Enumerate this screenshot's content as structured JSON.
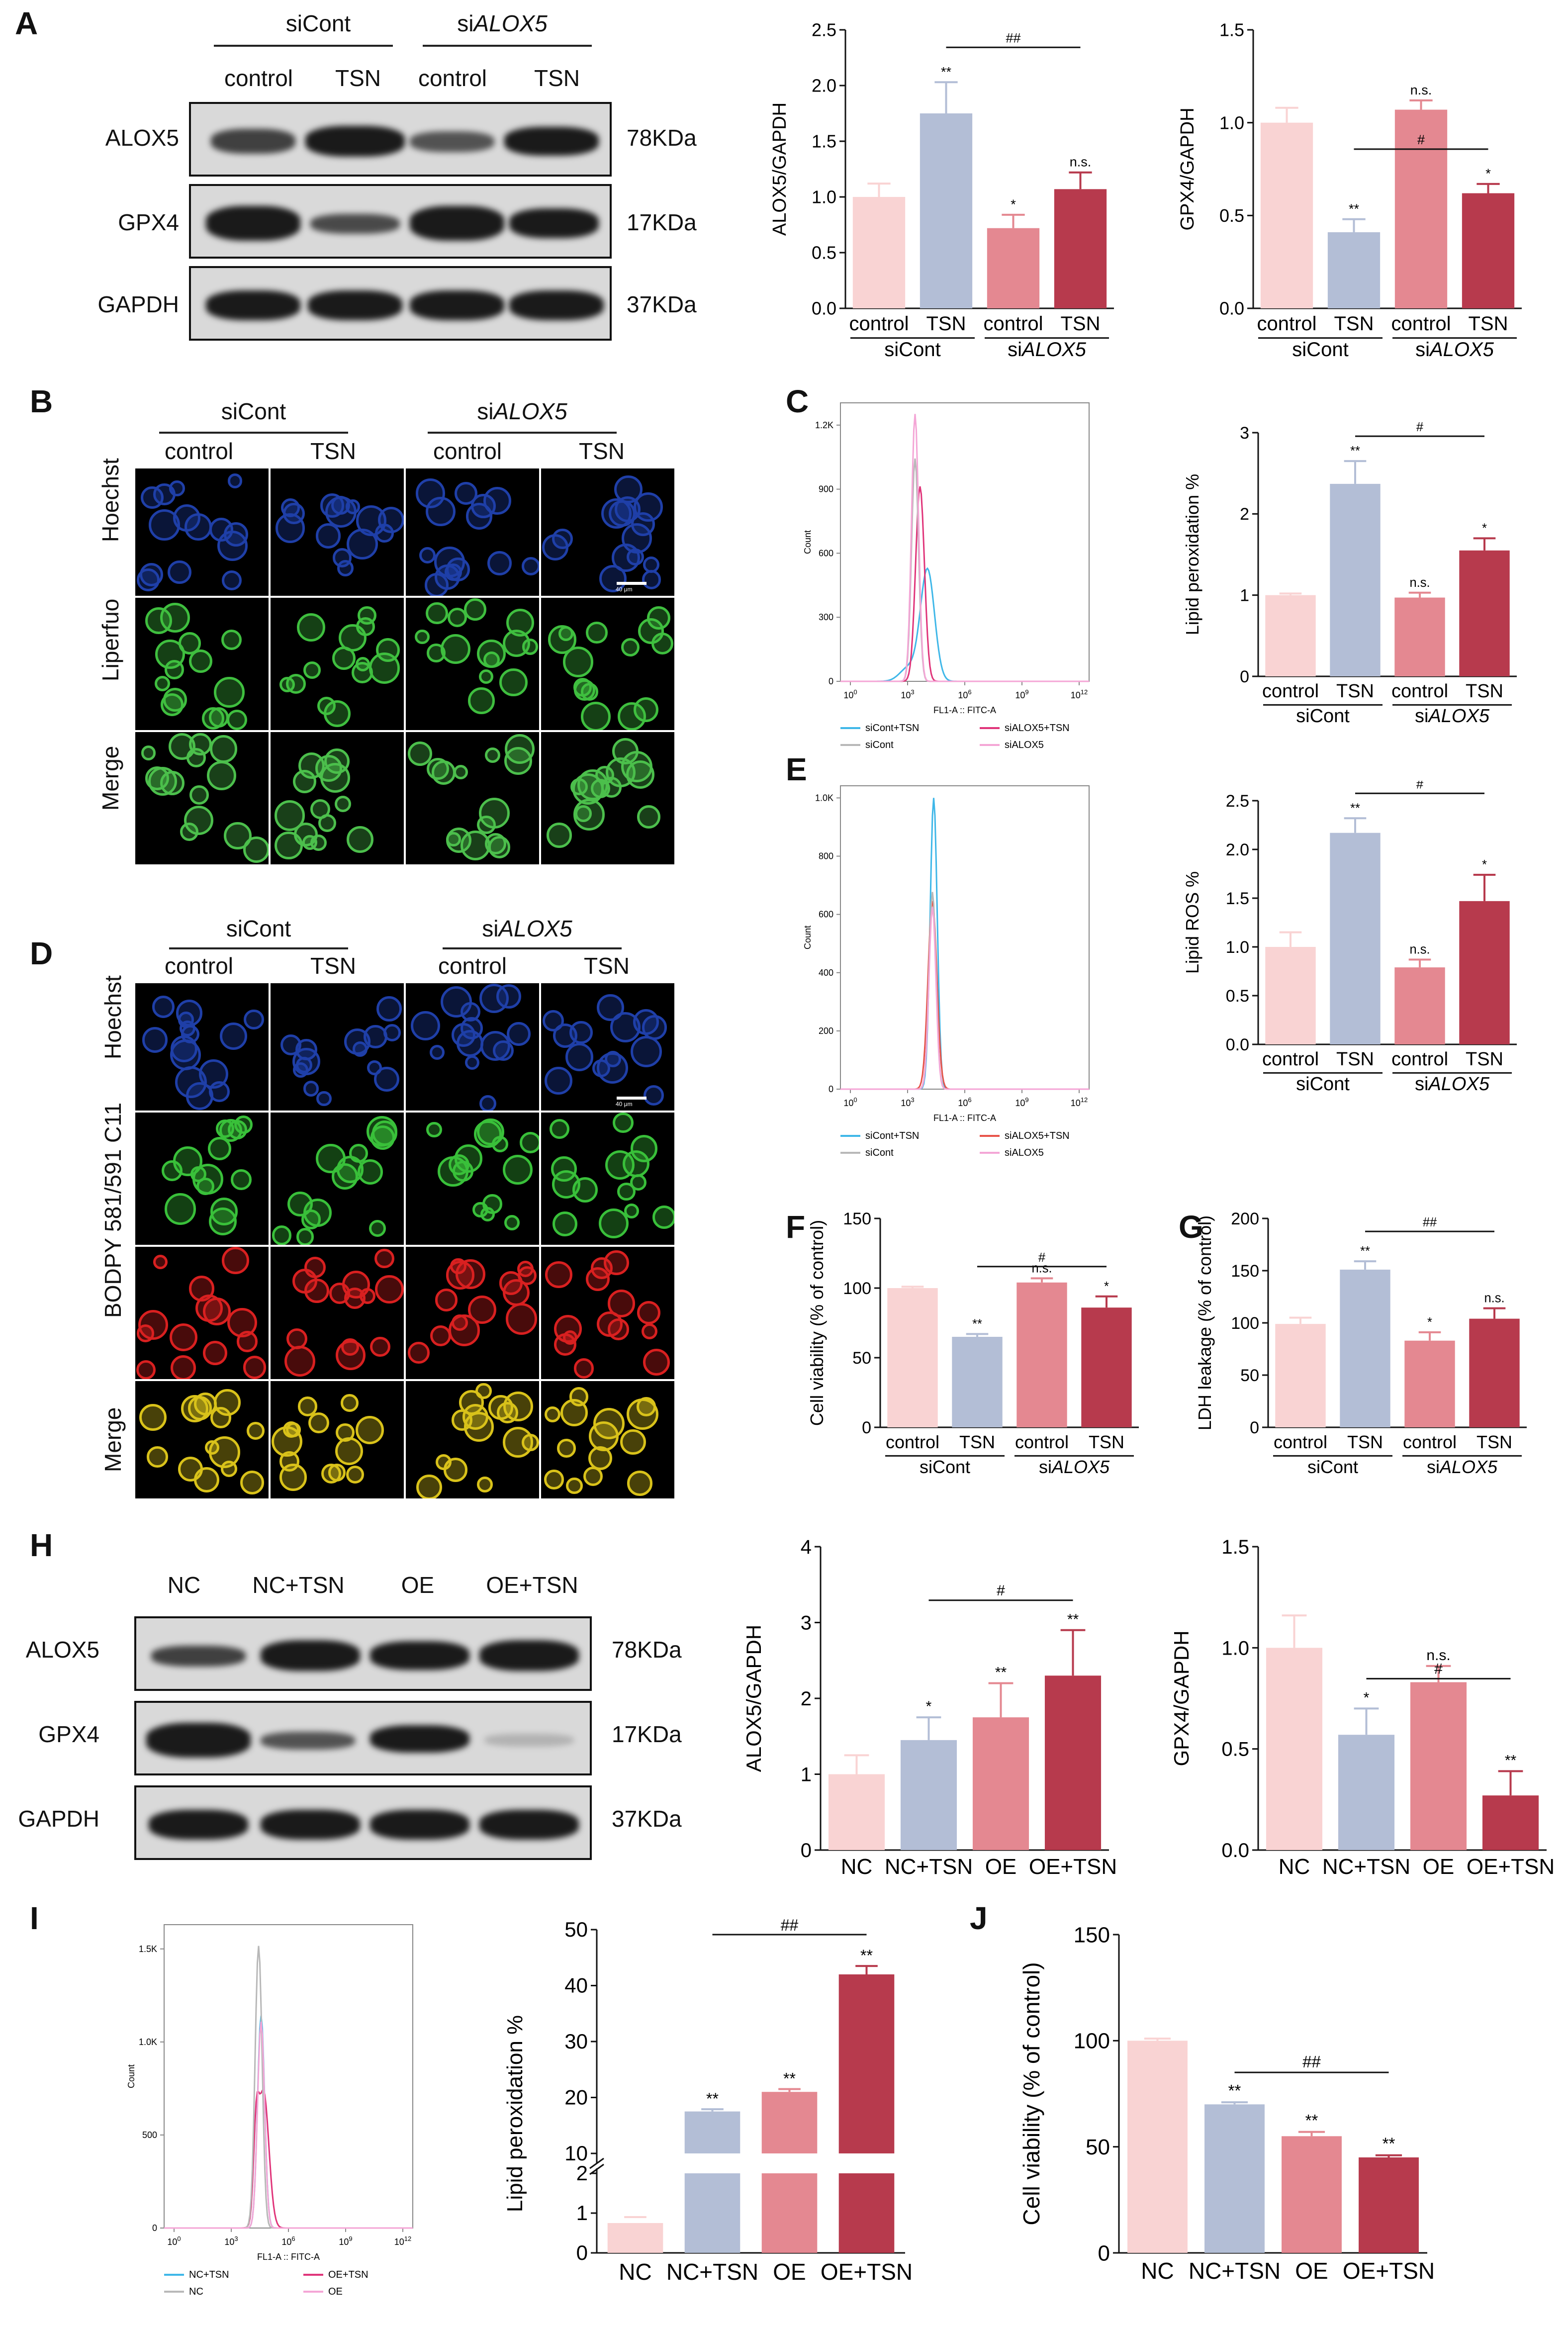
{
  "panels": [
    "A",
    "B",
    "C",
    "D",
    "E",
    "F",
    "G",
    "H",
    "I",
    "J"
  ],
  "groups": {
    "si": [
      "siCont",
      "siALOX5"
    ],
    "si_prefix": "si",
    "si_gene": "ALOX5",
    "treat": [
      "control",
      "TSN",
      "control",
      "TSN"
    ],
    "oe": [
      "NC",
      "NC+TSN",
      "OE",
      "OE+TSN"
    ]
  },
  "blots": {
    "rows": [
      "ALOX5",
      "GPX4",
      "GAPDH"
    ],
    "kda": [
      "78KDa",
      "17KDa",
      "37KDa"
    ]
  },
  "micro_rows_B": [
    "Hoechst",
    "Liperfuo",
    "Merge"
  ],
  "micro_rows_D": [
    "Hoechst",
    "BODPY 581/591 C11",
    "Merge"
  ],
  "scale_bar": "40 μm",
  "flow": {
    "xlabel": "FL1-A :: FITC-A",
    "ylabel": "Count",
    "C_yticks": [
      "0",
      "300",
      "600",
      "900",
      "1.2K"
    ],
    "E_yticks": [
      "0",
      "200",
      "400",
      "600",
      "800",
      "1.0K"
    ],
    "I_yticks": [
      "0",
      "500",
      "1.0K",
      "1.5K"
    ],
    "xticks": [
      "10^0",
      "10^3",
      "10^6",
      "10^9",
      "10^12"
    ],
    "legend_si": [
      "siCont+TSN",
      "siALOX5+TSN",
      "siCont",
      "siALOX5"
    ],
    "legend_oe": [
      "NC+TSN",
      "OE+TSN",
      "NC",
      "OE"
    ]
  },
  "colors": {
    "c1": "#f9d3d3",
    "c2": "#b3bed6",
    "c3": "#e48891",
    "c4": "#b73a4d",
    "cyan": "#3fb7e8",
    "magenta": "#e0357a",
    "grey": "#b8b8b8",
    "pink": "#f4a6d6"
  },
  "chart_data": [
    {
      "id": "A1",
      "type": "bar",
      "categories": [
        "control",
        "TSN",
        "control",
        "TSN"
      ],
      "values": [
        1.0,
        1.75,
        0.72,
        1.07
      ],
      "errors": [
        0.12,
        0.28,
        0.12,
        0.15
      ],
      "ylabel": "ALOX5/GAPDH",
      "ylim": [
        0,
        2.5
      ],
      "yticks": [
        "0.0",
        "0.5",
        "1.0",
        "1.5",
        "2.0",
        "2.5"
      ],
      "sig": [
        "",
        "**",
        "*",
        "n.s."
      ],
      "hash": "##"
    },
    {
      "id": "A2",
      "type": "bar",
      "categories": [
        "control",
        "TSN",
        "control",
        "TSN"
      ],
      "values": [
        1.0,
        0.41,
        1.07,
        0.62
      ],
      "errors": [
        0.08,
        0.07,
        0.05,
        0.05
      ],
      "ylabel": "GPX4/GAPDH",
      "ylim": [
        0,
        1.5
      ],
      "yticks": [
        "0.0",
        "0.5",
        "1.0",
        "1.5"
      ],
      "sig": [
        "",
        "**",
        "n.s.",
        "*"
      ],
      "hash": "#"
    },
    {
      "id": "C",
      "type": "bar",
      "categories": [
        "control",
        "TSN",
        "control",
        "TSN"
      ],
      "values": [
        1.0,
        2.37,
        0.97,
        1.55
      ],
      "errors": [
        0.02,
        0.28,
        0.06,
        0.15
      ],
      "ylabel": "Lipid peroxidation %",
      "ylim": [
        0,
        3
      ],
      "yticks": [
        "0",
        "1",
        "2",
        "3"
      ],
      "sig": [
        "",
        "**",
        "n.s.",
        "*"
      ],
      "hash": "#"
    },
    {
      "id": "E",
      "type": "bar",
      "categories": [
        "control",
        "TSN",
        "control",
        "TSN"
      ],
      "values": [
        1.0,
        2.17,
        0.79,
        1.47
      ],
      "errors": [
        0.15,
        0.15,
        0.08,
        0.27
      ],
      "ylabel": "Lipid ROS %",
      "ylim": [
        0,
        2.5
      ],
      "yticks": [
        "0.0",
        "0.5",
        "1.0",
        "1.5",
        "2.0",
        "2.5"
      ],
      "sig": [
        "",
        "**",
        "n.s.",
        "*"
      ],
      "hash": "#"
    },
    {
      "id": "F",
      "type": "bar",
      "categories": [
        "control",
        "TSN",
        "control",
        "TSN"
      ],
      "values": [
        100,
        65,
        104,
        86
      ],
      "errors": [
        1,
        2,
        3,
        8
      ],
      "ylabel": "Cell viability (% of control)",
      "ylim": [
        0,
        150
      ],
      "yticks": [
        "0",
        "50",
        "100",
        "150"
      ],
      "sig": [
        "",
        "**",
        "n.s.",
        "*"
      ],
      "hash": "#"
    },
    {
      "id": "G",
      "type": "bar",
      "categories": [
        "control",
        "TSN",
        "control",
        "TSN"
      ],
      "values": [
        99,
        151,
        83,
        104
      ],
      "errors": [
        6,
        8,
        8,
        10
      ],
      "ylabel": "LDH leakage (% of control)",
      "ylim": [
        0,
        200
      ],
      "yticks": [
        "0",
        "50",
        "100",
        "150",
        "200"
      ],
      "sig": [
        "",
        "**",
        "*",
        "n.s."
      ],
      "hash": "##"
    },
    {
      "id": "H1",
      "type": "bar",
      "categories": [
        "NC",
        "NC+TSN",
        "OE",
        "OE+TSN"
      ],
      "values": [
        1.0,
        1.45,
        1.75,
        2.3
      ],
      "errors": [
        0.25,
        0.3,
        0.45,
        0.6
      ],
      "ylabel": "ALOX5/GAPDH",
      "ylim": [
        0,
        4
      ],
      "yticks": [
        "0",
        "1",
        "2",
        "3",
        "4"
      ],
      "sig": [
        "",
        "*",
        "**",
        "**"
      ],
      "hash": "#"
    },
    {
      "id": "H2",
      "type": "bar",
      "categories": [
        "NC",
        "NC+TSN",
        "OE",
        "OE+TSN"
      ],
      "values": [
        1.0,
        0.57,
        0.83,
        0.27
      ],
      "errors": [
        0.16,
        0.13,
        0.08,
        0.12
      ],
      "ylabel": "GPX4/GAPDH",
      "ylim": [
        0,
        1.5
      ],
      "yticks": [
        "0.0",
        "0.5",
        "1.0",
        "1.5"
      ],
      "sig": [
        "",
        "*",
        "n.s.",
        "**"
      ],
      "hash": "#"
    },
    {
      "id": "I",
      "type": "bar",
      "categories": [
        "NC",
        "NC+TSN",
        "OE",
        "OE+TSN"
      ],
      "values": [
        0.75,
        17.5,
        21,
        42
      ],
      "errors": [
        0.15,
        0.4,
        0.5,
        1.5
      ],
      "ylabel": "Lipid peroxidation %",
      "broken_axis": true,
      "yticks_low": [
        "0",
        "1",
        "2"
      ],
      "yticks_high": [
        "10",
        "20",
        "30",
        "40",
        "50"
      ],
      "sig": [
        "",
        "**",
        "**",
        "**"
      ],
      "hash": "##"
    },
    {
      "id": "J",
      "type": "bar",
      "categories": [
        "NC",
        "NC+TSN",
        "OE",
        "OE+TSN"
      ],
      "values": [
        100,
        70,
        55,
        45
      ],
      "errors": [
        1,
        1,
        2,
        1
      ],
      "ylabel": "Cell viability (% of control)",
      "ylim": [
        0,
        150
      ],
      "yticks": [
        "0",
        "50",
        "100",
        "150"
      ],
      "sig": [
        "",
        "**",
        "**",
        "**"
      ],
      "hash": "##"
    }
  ]
}
